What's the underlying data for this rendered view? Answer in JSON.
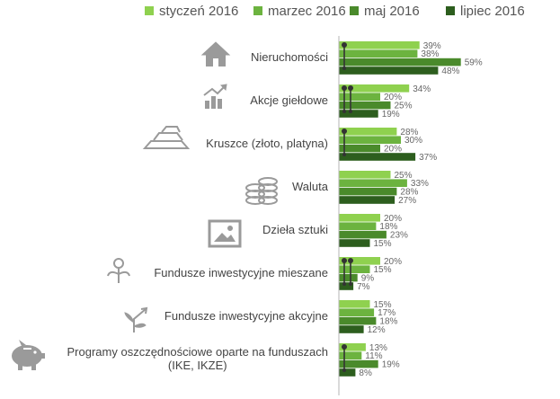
{
  "chart_data": {
    "type": "bar",
    "orientation": "horizontal",
    "categories": [
      "Nieruchomości",
      "Akcje giełdowe",
      "Kruszce (złoto, platyna)",
      "Waluta",
      "Dzieła sztuki",
      "Fundusze inwestycyjne mieszane",
      "Fundusze inwestycyjne akcyjne",
      "Programy oszczędnościowe oparte na funduszach (IKE, IKZE)"
    ],
    "category_lines": [
      [
        "Nieruchomości"
      ],
      [
        "Akcje giełdowe"
      ],
      [
        "Kruszce (złoto, platyna)"
      ],
      [
        "Waluta"
      ],
      [
        "Dzieła sztuki"
      ],
      [
        "Fundusze inwestycyjne mieszane"
      ],
      [
        "Fundusze inwestycyjne akcyjne"
      ],
      [
        "Programy oszczędnościowe oparte na funduszach",
        "(IKE, IKZE)"
      ]
    ],
    "category_icons": [
      "house-icon",
      "chart-growth-icon",
      "gold-bars-icon",
      "coins-icon",
      "painting-icon",
      "seedling-icon",
      "plant-growth-icon",
      "piggy-bank-icon"
    ],
    "series": [
      {
        "name": "styczeń 2016",
        "color": "#8fd14f",
        "values": [
          39,
          34,
          28,
          25,
          20,
          20,
          15,
          13
        ]
      },
      {
        "name": "marzec 2016",
        "color": "#6cb33f",
        "values": [
          38,
          20,
          30,
          33,
          18,
          15,
          17,
          11
        ]
      },
      {
        "name": "maj 2016",
        "color": "#4a8a2b",
        "values": [
          59,
          25,
          20,
          28,
          23,
          9,
          18,
          19
        ]
      },
      {
        "name": "lipiec 2016",
        "color": "#2d5e1e",
        "values": [
          48,
          19,
          37,
          27,
          15,
          7,
          12,
          8
        ]
      }
    ],
    "value_suffix": "%",
    "xlim": [
      0,
      60
    ],
    "markers": [
      {
        "category": 0,
        "count": 1
      },
      {
        "category": 1,
        "count": 2
      },
      {
        "category": 2,
        "count": 1
      },
      {
        "category": 5,
        "count": 2
      },
      {
        "category": 7,
        "count": 1
      }
    ],
    "legend_position": "top",
    "title": "",
    "xlabel": "",
    "ylabel": ""
  }
}
